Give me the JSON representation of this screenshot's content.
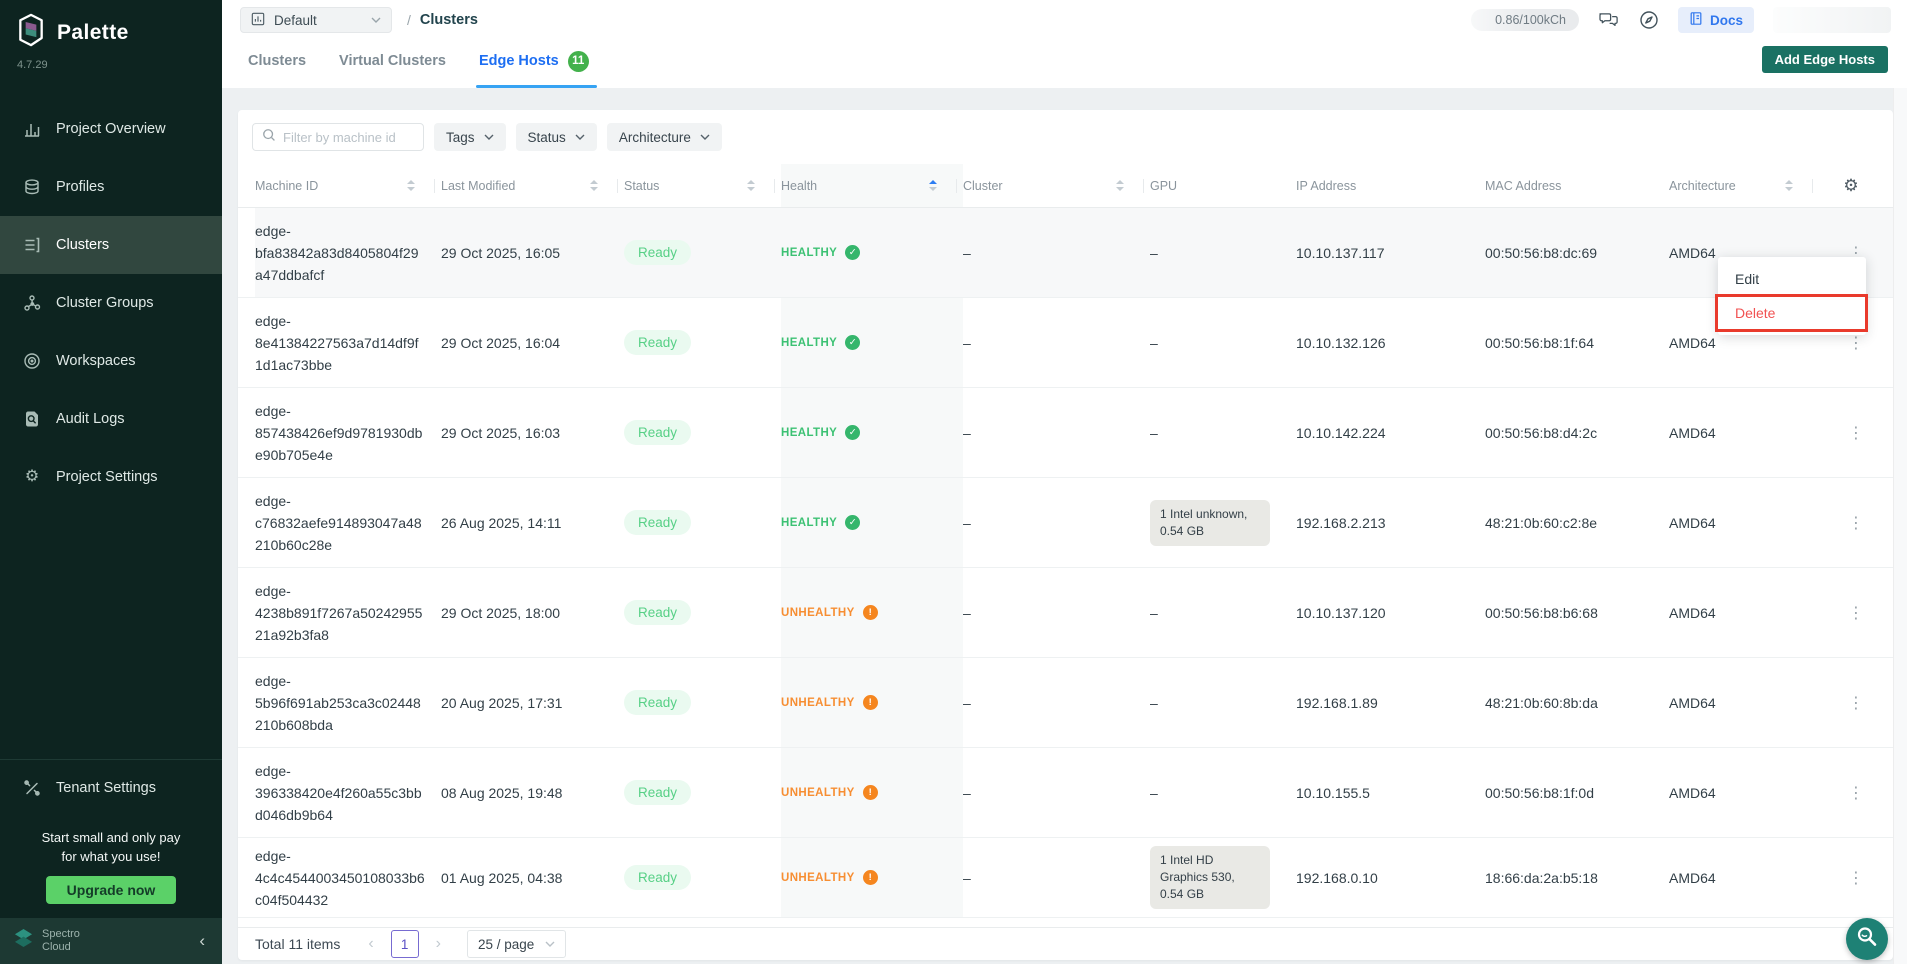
{
  "theme": {
    "sidebar_bg": "#0d2420",
    "sidebar_active_bg": "#31473f",
    "primary_button": "#1a7163",
    "tab_active": "#1d6ef2",
    "badge_green": "#43b14c",
    "ready_green": "#57d086",
    "healthy_green": "#3cc173",
    "unhealthy_orange": "#f78e32",
    "delete_red": "#f15151",
    "annotation_red": "#e93a2c",
    "upgrade_green": "#5bd168"
  },
  "sidebar": {
    "logo_text": "Palette",
    "version": "4.7.29",
    "items": [
      {
        "id": "project-overview",
        "label": "Project Overview",
        "icon": "chart"
      },
      {
        "id": "profiles",
        "label": "Profiles",
        "icon": "layers"
      },
      {
        "id": "clusters",
        "label": "Clusters",
        "icon": "list",
        "active": true
      },
      {
        "id": "cluster-groups",
        "label": "Cluster Groups",
        "icon": "nodes"
      },
      {
        "id": "workspaces",
        "label": "Workspaces",
        "icon": "target"
      },
      {
        "id": "audit-logs",
        "label": "Audit Logs",
        "icon": "docsearch"
      },
      {
        "id": "project-settings",
        "label": "Project Settings",
        "icon": "gear"
      }
    ],
    "tenant_settings_label": "Tenant Settings",
    "promo": {
      "line1": "Start small and only pay",
      "line2": "for what you use!",
      "button": "Upgrade now"
    },
    "footer_brand": {
      "line1": "Spectro",
      "line2": "Cloud"
    }
  },
  "topbar": {
    "project_selector": "Default",
    "breadcrumb_separator": "/",
    "breadcrumb_current": "Clusters",
    "usage": "0.86/100kCh",
    "docs_label": "Docs"
  },
  "tabs": [
    {
      "label": "Clusters"
    },
    {
      "label": "Virtual Clusters"
    },
    {
      "label": "Edge Hosts",
      "badge": "11",
      "active": true
    }
  ],
  "add_button_label": "Add Edge Hosts",
  "filters": {
    "search_placeholder": "Filter by machine id",
    "dropdowns": [
      "Tags",
      "Status",
      "Architecture"
    ]
  },
  "table": {
    "columns": [
      {
        "label": "Machine ID",
        "sortable": true
      },
      {
        "label": "Last Modified",
        "sortable": true
      },
      {
        "label": "Status",
        "sortable": true
      },
      {
        "label": "Health",
        "sortable": true,
        "sorted": "asc"
      },
      {
        "label": "Cluster",
        "sortable": true
      },
      {
        "label": "GPU",
        "sortable": false
      },
      {
        "label": "IP Address",
        "sortable": false
      },
      {
        "label": "MAC Address",
        "sortable": false
      },
      {
        "label": "Architecture",
        "sortable": true
      }
    ],
    "rows": [
      {
        "machine_id": "edge-bfa83842a83d8405804f29a47ddbafcf",
        "last_modified": "29 Oct 2025, 16:05",
        "status": "Ready",
        "health": "HEALTHY",
        "cluster": "–",
        "gpu": "–",
        "ip_address": "10.10.137.117",
        "mac_address": "00:50:56:b8:dc:69",
        "architecture": "AMD64"
      },
      {
        "machine_id": "edge-8e41384227563a7d14df9f1d1ac73bbe",
        "last_modified": "29 Oct 2025, 16:04",
        "status": "Ready",
        "health": "HEALTHY",
        "cluster": "–",
        "gpu": "–",
        "ip_address": "10.10.132.126",
        "mac_address": "00:50:56:b8:1f:64",
        "architecture": "AMD64"
      },
      {
        "machine_id": "edge-857438426ef9d9781930dbe90b705e4e",
        "last_modified": "29 Oct 2025, 16:03",
        "status": "Ready",
        "health": "HEALTHY",
        "cluster": "–",
        "gpu": "–",
        "ip_address": "10.10.142.224",
        "mac_address": "00:50:56:b8:d4:2c",
        "architecture": "AMD64"
      },
      {
        "machine_id": "edge-c76832aefe914893047a48210b60c28e",
        "last_modified": "26 Aug 2025, 14:11",
        "status": "Ready",
        "health": "HEALTHY",
        "cluster": "–",
        "gpu": "1 Intel unknown, 0.54 GB",
        "ip_address": "192.168.2.213",
        "mac_address": "48:21:0b:60:c2:8e",
        "architecture": "AMD64"
      },
      {
        "machine_id": "edge-4238b891f7267a5024295521a92b3fa8",
        "last_modified": "29 Oct 2025, 18:00",
        "status": "Ready",
        "health": "UNHEALTHY",
        "cluster": "–",
        "gpu": "–",
        "ip_address": "10.10.137.120",
        "mac_address": "00:50:56:b8:b6:68",
        "architecture": "AMD64"
      },
      {
        "machine_id": "edge-5b96f691ab253ca3c02448210b608bda",
        "last_modified": "20 Aug 2025, 17:31",
        "status": "Ready",
        "health": "UNHEALTHY",
        "cluster": "–",
        "gpu": "–",
        "ip_address": "192.168.1.89",
        "mac_address": "48:21:0b:60:8b:da",
        "architecture": "AMD64"
      },
      {
        "machine_id": "edge-396338420e4f260a55c3bbd046db9b64",
        "last_modified": "08 Aug 2025, 19:48",
        "status": "Ready",
        "health": "UNHEALTHY",
        "cluster": "–",
        "gpu": "–",
        "ip_address": "10.10.155.5",
        "mac_address": "00:50:56:b8:1f:0d",
        "architecture": "AMD64"
      },
      {
        "machine_id": "edge-4c4c4544003450108033b6c04f504432",
        "last_modified": "01 Aug 2025, 04:38",
        "status": "Ready",
        "health": "UNHEALTHY",
        "cluster": "–",
        "gpu": "1 Intel HD Graphics 530, 0.54 GB",
        "ip_address": "192.168.0.10",
        "mac_address": "18:66:da:2a:b5:18",
        "architecture": "AMD64"
      }
    ]
  },
  "context_menu": {
    "edit_label": "Edit",
    "delete_label": "Delete"
  },
  "pagination": {
    "total_label": "Total 11 items",
    "current_page": "1",
    "page_size": "25 / page"
  }
}
